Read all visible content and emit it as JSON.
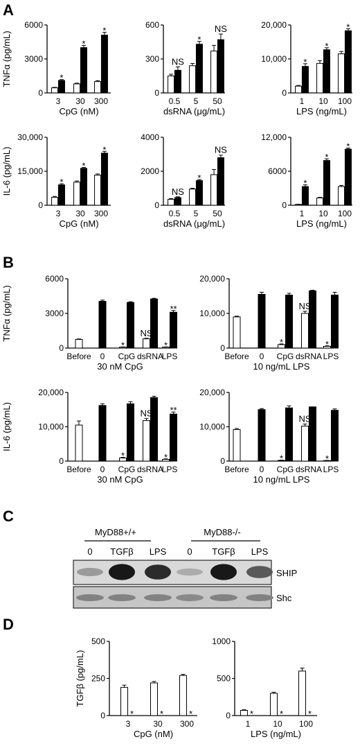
{
  "panel_labels": [
    "A",
    "B",
    "C",
    "D"
  ],
  "panel_C": {
    "groups": [
      "MyD88+/+",
      "MyD88-/-"
    ],
    "lanes": [
      "0",
      "TGFβ",
      "LPS",
      "0",
      "TGFβ",
      "LPS"
    ],
    "bands": [
      "SHIP",
      "Shc"
    ],
    "ship_intensity": [
      0.25,
      0.95,
      0.85,
      0.15,
      0.95,
      0.6
    ],
    "shc_intensity": [
      0.5,
      0.5,
      0.5,
      0.45,
      0.5,
      0.5
    ]
  },
  "chart_data": [
    {
      "id": "A1",
      "panel": "A",
      "type": "bar",
      "ylabel": "TNFα (pg/mL)",
      "xlabel": "CpG (nM)",
      "categories": [
        "3",
        "30",
        "300"
      ],
      "ylim": [
        0,
        6000
      ],
      "yticks": [
        "0",
        "3000",
        "6000"
      ],
      "series": [
        {
          "fill": "#ffffff",
          "values": [
            450,
            800,
            1000
          ],
          "errors": [
            40,
            60,
            80
          ]
        },
        {
          "fill": "#000000",
          "values": [
            1100,
            4000,
            5100
          ],
          "errors": [
            80,
            200,
            250
          ]
        }
      ],
      "sig": [
        {
          "label": "*",
          "category": 0,
          "series": 1
        },
        {
          "label": "*",
          "category": 1,
          "series": 1
        },
        {
          "label": "*",
          "category": 2,
          "series": 1
        }
      ]
    },
    {
      "id": "A2",
      "panel": "A",
      "type": "bar",
      "ylabel": "",
      "xlabel": "dsRNA (μg/mL)",
      "categories": [
        "0.5",
        "5",
        "50"
      ],
      "ylim": [
        0,
        600
      ],
      "yticks": [
        "0",
        "300",
        "600"
      ],
      "series": [
        {
          "fill": "#ffffff",
          "values": [
            150,
            240,
            370
          ],
          "errors": [
            15,
            20,
            50
          ]
        },
        {
          "fill": "#000000",
          "values": [
            200,
            430,
            470
          ],
          "errors": [
            30,
            25,
            50
          ]
        }
      ],
      "sig": [
        {
          "label": "NS",
          "category": 0,
          "series": 1
        },
        {
          "label": "*",
          "category": 1,
          "series": 1
        },
        {
          "label": "NS",
          "category": 2,
          "series": 1
        }
      ]
    },
    {
      "id": "A3",
      "panel": "A",
      "type": "bar",
      "ylabel": "",
      "xlabel": "LPS (ng/mL)",
      "categories": [
        "1",
        "10",
        "100"
      ],
      "ylim": [
        0,
        20000
      ],
      "yticks": [
        "0",
        "10,000",
        "20,000"
      ],
      "series": [
        {
          "fill": "#ffffff",
          "values": [
            2000,
            8700,
            11500
          ],
          "errors": [
            200,
            800,
            700
          ]
        },
        {
          "fill": "#000000",
          "values": [
            7800,
            12700,
            18300
          ],
          "errors": [
            800,
            600,
            600
          ]
        }
      ],
      "sig": [
        {
          "label": "*",
          "category": 0,
          "series": 1
        },
        {
          "label": "*",
          "category": 1,
          "series": 1
        },
        {
          "label": "*",
          "category": 2,
          "series": 1
        }
      ]
    },
    {
      "id": "A4",
      "panel": "A",
      "type": "bar",
      "ylabel": "IL-6 (pg/mL)",
      "xlabel": "CpG (nM)",
      "categories": [
        "3",
        "30",
        "300"
      ],
      "ylim": [
        0,
        30000
      ],
      "yticks": [
        "0",
        "15,000",
        "30,000"
      ],
      "series": [
        {
          "fill": "#ffffff",
          "values": [
            3500,
            10200,
            13300
          ],
          "errors": [
            400,
            500,
            500
          ]
        },
        {
          "fill": "#000000",
          "values": [
            9000,
            16300,
            23000
          ],
          "errors": [
            500,
            400,
            800
          ]
        }
      ],
      "sig": [
        {
          "label": "*",
          "category": 0,
          "series": 1
        },
        {
          "label": "*",
          "category": 1,
          "series": 1
        },
        {
          "label": "*",
          "category": 2,
          "series": 1
        }
      ]
    },
    {
      "id": "A5",
      "panel": "A",
      "type": "bar",
      "ylabel": "",
      "xlabel": "dsRNA (μg/mL)",
      "categories": [
        "0.5",
        "5",
        "50"
      ],
      "ylim": [
        0,
        4000
      ],
      "yticks": [
        "0",
        "2000",
        "4000"
      ],
      "series": [
        {
          "fill": "#ffffff",
          "values": [
            350,
            950,
            1800
          ],
          "errors": [
            40,
            50,
            300
          ]
        },
        {
          "fill": "#000000",
          "values": [
            450,
            1450,
            2800
          ],
          "errors": [
            50,
            60,
            150
          ]
        }
      ],
      "sig": [
        {
          "label": "NS",
          "category": 0,
          "series": 1
        },
        {
          "label": "*",
          "category": 1,
          "series": 1
        },
        {
          "label": "NS",
          "category": 2,
          "series": 1
        }
      ]
    },
    {
      "id": "A6",
      "panel": "A",
      "type": "bar",
      "ylabel": "",
      "xlabel": "LPS (ng/mL)",
      "categories": [
        "1",
        "10",
        "100"
      ],
      "ylim": [
        0,
        12000
      ],
      "yticks": [
        "0",
        "6000",
        "12,000"
      ],
      "series": [
        {
          "fill": "#ffffff",
          "values": [
            150,
            1300,
            3300
          ],
          "errors": [
            30,
            100,
            200
          ]
        },
        {
          "fill": "#000000",
          "values": [
            3300,
            7900,
            9900
          ],
          "errors": [
            300,
            300,
            200
          ]
        }
      ],
      "sig": [
        {
          "label": "*",
          "category": 0,
          "series": 1
        },
        {
          "label": "*",
          "category": 1,
          "series": 1
        },
        {
          "label": "*",
          "category": 2,
          "series": 1
        }
      ]
    },
    {
      "id": "B1",
      "panel": "B",
      "type": "bar",
      "ylabel": "TNFα (pg/mL)",
      "xlabel": "30 nM CpG",
      "categories": [
        "Before",
        "0",
        "CpG",
        "dsRNA",
        "LPS"
      ],
      "ylim": [
        0,
        6000
      ],
      "yticks": [
        "0",
        "3000",
        "6000"
      ],
      "series": [
        {
          "fill": "#ffffff",
          "values": [
            750,
            null,
            80,
            800,
            80
          ],
          "errors": [
            40,
            0,
            20,
            50,
            20
          ]
        },
        {
          "fill": "#000000",
          "values": [
            null,
            4050,
            3950,
            4250,
            3100
          ],
          "errors": [
            0,
            100,
            60,
            60,
            150
          ]
        }
      ],
      "sig": [
        {
          "label": "*",
          "category": 2,
          "series": 0
        },
        {
          "label": "NS",
          "category": 3,
          "series": 0
        },
        {
          "label": "*",
          "category": 4,
          "series": 0
        },
        {
          "label": "**",
          "category": 4,
          "series": 1
        }
      ]
    },
    {
      "id": "B2",
      "panel": "B",
      "type": "bar",
      "ylabel": "",
      "xlabel": "10 ng/mL LPS",
      "categories": [
        "Before",
        "0",
        "CpG",
        "dsRNA",
        "LPS"
      ],
      "ylim": [
        0,
        20000
      ],
      "yticks": [
        "0",
        "10,000",
        "20,000"
      ],
      "series": [
        {
          "fill": "#ffffff",
          "values": [
            9000,
            null,
            1000,
            10000,
            500
          ],
          "errors": [
            200,
            0,
            200,
            600,
            150
          ]
        },
        {
          "fill": "#000000",
          "values": [
            null,
            15500,
            15300,
            16500,
            15300
          ],
          "errors": [
            0,
            600,
            500,
            200,
            800
          ]
        }
      ],
      "sig": [
        {
          "label": "*",
          "category": 2,
          "series": 0
        },
        {
          "label": "NS",
          "category": 3,
          "series": 0
        },
        {
          "label": "*",
          "category": 4,
          "series": 0
        }
      ]
    },
    {
      "id": "B3",
      "panel": "B",
      "type": "bar",
      "ylabel": "IL-6 (pg/mL)",
      "xlabel": "30 nM CpG",
      "categories": [
        "Before",
        "0",
        "CpG",
        "dsRNA",
        "LPS"
      ],
      "ylim": [
        0,
        20000
      ],
      "yticks": [
        "0",
        "10,000",
        "20,000"
      ],
      "series": [
        {
          "fill": "#ffffff",
          "values": [
            10500,
            null,
            900,
            11800,
            500
          ],
          "errors": [
            1200,
            0,
            200,
            600,
            150
          ]
        },
        {
          "fill": "#000000",
          "values": [
            null,
            16200,
            16700,
            18500,
            13700
          ],
          "errors": [
            0,
            500,
            600,
            400,
            600
          ]
        }
      ],
      "sig": [
        {
          "label": "*",
          "category": 2,
          "series": 0
        },
        {
          "label": "NS",
          "category": 3,
          "series": 0
        },
        {
          "label": "*",
          "category": 4,
          "series": 0
        },
        {
          "label": "**",
          "category": 4,
          "series": 1
        }
      ]
    },
    {
      "id": "B4",
      "panel": "B",
      "type": "bar",
      "ylabel": "",
      "xlabel": "10 ng/mL LPS",
      "categories": [
        "Before",
        "0",
        "CpG",
        "dsRNA",
        "LPS"
      ],
      "ylim": [
        0,
        20000
      ],
      "yticks": [
        "0",
        "10,000",
        "20,000"
      ],
      "series": [
        {
          "fill": "#ffffff",
          "values": [
            9200,
            null,
            200,
            10200,
            150
          ],
          "errors": [
            300,
            0,
            80,
            600,
            60
          ]
        },
        {
          "fill": "#000000",
          "values": [
            null,
            15000,
            15500,
            15800,
            14800
          ],
          "errors": [
            0,
            300,
            600,
            0,
            400
          ]
        }
      ],
      "sig": [
        {
          "label": "*",
          "category": 2,
          "series": 0
        },
        {
          "label": "NS",
          "category": 3,
          "series": 0
        },
        {
          "label": "*",
          "category": 4,
          "series": 0
        }
      ]
    },
    {
      "id": "D1",
      "panel": "D",
      "type": "bar",
      "ylabel": "TGFβ (pg/mL)",
      "xlabel": "CpG (nM)",
      "categories": [
        "3",
        "30",
        "300"
      ],
      "ylim": [
        0,
        500
      ],
      "yticks": [
        "0",
        "250",
        "500"
      ],
      "series": [
        {
          "fill": "#ffffff",
          "values": [
            190,
            220,
            270
          ],
          "errors": [
            15,
            10,
            8
          ]
        },
        {
          "fill": "#000000",
          "values": [
            0,
            0,
            0
          ],
          "errors": [
            0,
            0,
            0
          ]
        }
      ],
      "sig": [
        {
          "label": "*",
          "category": 0,
          "series": 1
        },
        {
          "label": "*",
          "category": 1,
          "series": 1
        },
        {
          "label": "*",
          "category": 2,
          "series": 1
        }
      ]
    },
    {
      "id": "D2",
      "panel": "D",
      "type": "bar",
      "ylabel": "",
      "xlabel": "LPS (ng/mL)",
      "categories": [
        "1",
        "10",
        "100"
      ],
      "ylim": [
        0,
        1000
      ],
      "yticks": [
        "0",
        "500",
        "1000"
      ],
      "series": [
        {
          "fill": "#ffffff",
          "values": [
            70,
            300,
            600
          ],
          "errors": [
            8,
            15,
            40
          ]
        },
        {
          "fill": "#000000",
          "values": [
            0,
            0,
            0
          ],
          "errors": [
            0,
            0,
            0
          ]
        }
      ],
      "sig": [
        {
          "label": "*",
          "category": 0,
          "series": 1
        },
        {
          "label": "*",
          "category": 1,
          "series": 1
        },
        {
          "label": "*",
          "category": 2,
          "series": 1
        }
      ]
    }
  ]
}
